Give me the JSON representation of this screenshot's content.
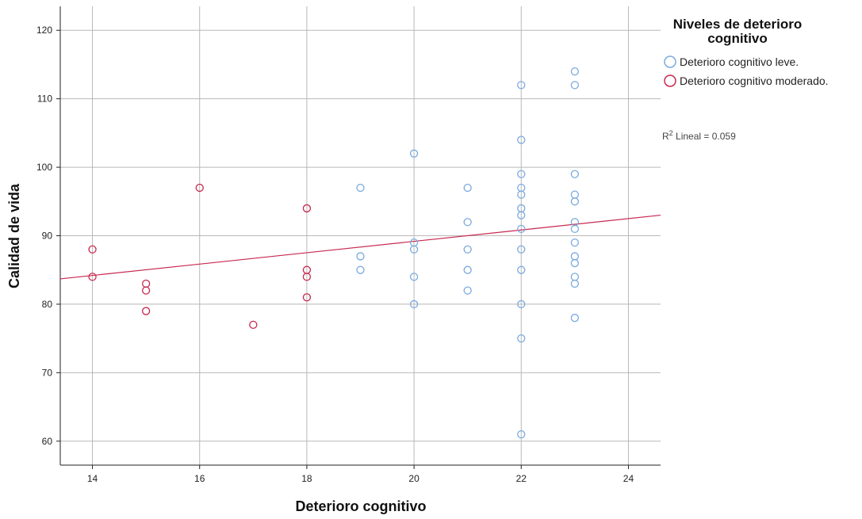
{
  "chart_data": {
    "type": "scatter",
    "xlabel": "Deterioro cognitivo",
    "ylabel": "Calidad de vida",
    "xlim": [
      13.4,
      24.6
    ],
    "ylim": [
      56.5,
      123.5
    ],
    "x_ticks": [
      14,
      16,
      18,
      20,
      22,
      24
    ],
    "y_ticks": [
      60,
      70,
      80,
      90,
      100,
      110,
      120
    ],
    "grid": true,
    "legend": {
      "title": "Niveles de deterioro cognitivo",
      "title_lines": [
        "Niveles de deterioro",
        "cognitivo"
      ],
      "position": "top-right"
    },
    "series": [
      {
        "name": "Deterioro cognitivo leve.",
        "color": "#7aaade",
        "marker": "open-circle",
        "points": [
          [
            19,
            97
          ],
          [
            19,
            87
          ],
          [
            19,
            85
          ],
          [
            20,
            102
          ],
          [
            20,
            89
          ],
          [
            20,
            88
          ],
          [
            20,
            84
          ],
          [
            20,
            80
          ],
          [
            21,
            97
          ],
          [
            21,
            92
          ],
          [
            21,
            88
          ],
          [
            21,
            85
          ],
          [
            21,
            82
          ],
          [
            22,
            112
          ],
          [
            22,
            104
          ],
          [
            22,
            99
          ],
          [
            22,
            97
          ],
          [
            22,
            96
          ],
          [
            22,
            94
          ],
          [
            22,
            93
          ],
          [
            22,
            91
          ],
          [
            22,
            88
          ],
          [
            22,
            85
          ],
          [
            22,
            80
          ],
          [
            22,
            75
          ],
          [
            22,
            61
          ],
          [
            23,
            114
          ],
          [
            23,
            112
          ],
          [
            23,
            99
          ],
          [
            23,
            96
          ],
          [
            23,
            95
          ],
          [
            23,
            92
          ],
          [
            23,
            91
          ],
          [
            23,
            89
          ],
          [
            23,
            87
          ],
          [
            23,
            86
          ],
          [
            23,
            84
          ],
          [
            23,
            83
          ],
          [
            23,
            78
          ]
        ]
      },
      {
        "name": "Deterioro cognitivo moderado.",
        "color": "#c8284e",
        "marker": "open-circle",
        "points": [
          [
            14,
            88
          ],
          [
            14,
            84
          ],
          [
            15,
            83
          ],
          [
            15,
            82
          ],
          [
            15,
            79
          ],
          [
            16,
            97
          ],
          [
            17,
            77
          ],
          [
            18,
            94
          ],
          [
            18,
            85
          ],
          [
            18,
            84
          ],
          [
            18,
            81
          ]
        ]
      }
    ],
    "fit_line": {
      "label": "R² Lineal = 0.059",
      "label_base": "R",
      "label_sup": "2",
      "label_rest": " Lineal = 0.059",
      "color": "#c8284e",
      "x": [
        13.4,
        24.6
      ],
      "y": [
        83.7,
        93.0
      ]
    }
  }
}
